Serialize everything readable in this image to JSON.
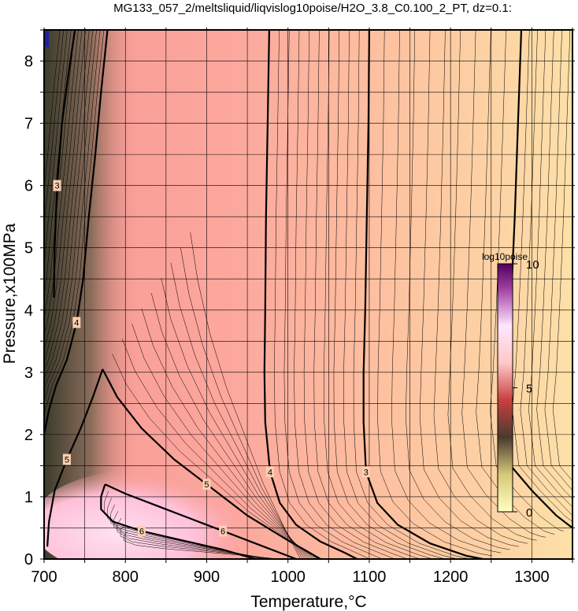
{
  "chart_data": {
    "type": "contour",
    "title": "MG133_057_2/meltsliquid/liqvislog10poise/H2O_3.8_C0.100_2_PT, dz=0.1:",
    "xlabel": "Temperature,°C",
    "ylabel": "Pressure,x100MPa",
    "xlim": [
      700,
      1350
    ],
    "ylim": [
      0,
      8.5
    ],
    "x_ticks": [
      700,
      800,
      900,
      1000,
      1100,
      1200,
      1300
    ],
    "y_ticks": [
      0,
      1,
      2,
      3,
      4,
      5,
      6,
      7,
      8
    ],
    "grid": true,
    "contour_interval": 0.1,
    "labeled_contours": [
      {
        "level": "2",
        "points": [
          [
            1287,
            8.5
          ],
          [
            1283,
            7.0
          ],
          [
            1279,
            5.5
          ],
          [
            1274,
            4.0
          ],
          [
            1270,
            3.0
          ],
          [
            1266,
            2.4
          ],
          [
            1274,
            1.5
          ],
          [
            1300,
            1.1
          ],
          [
            1330,
            0.7
          ],
          [
            1350,
            0.5
          ]
        ]
      },
      {
        "level": "3",
        "points": [
          [
            1100,
            8.5
          ],
          [
            1099,
            7.0
          ],
          [
            1097,
            5.5
          ],
          [
            1095,
            4.0
          ],
          [
            1093,
            3.0
          ],
          [
            1093,
            2.2
          ],
          [
            1096,
            1.4
          ],
          [
            1110,
            0.9
          ],
          [
            1135,
            0.55
          ],
          [
            1175,
            0.25
          ],
          [
            1220,
            0.05
          ],
          [
            1240,
            0.0
          ]
        ]
      },
      {
        "level": "4",
        "points": [
          [
            977,
            8.5
          ],
          [
            975,
            7.0
          ],
          [
            973,
            5.5
          ],
          [
            972,
            4.0
          ],
          [
            971,
            3.0
          ],
          [
            972,
            2.2
          ],
          [
            978,
            1.4
          ],
          [
            990,
            0.9
          ],
          [
            1010,
            0.55
          ],
          [
            1040,
            0.28
          ],
          [
            1070,
            0.1
          ],
          [
            1085,
            0.0
          ]
        ]
      },
      {
        "level": "5",
        "points": [
          [
            772,
            3.05
          ],
          [
            760,
            2.6
          ],
          [
            745,
            2.1
          ],
          [
            728,
            1.6
          ],
          [
            713,
            1.1
          ],
          [
            706,
            0.6
          ],
          [
            704,
            0.2
          ]
        ]
      },
      {
        "level": "5",
        "points": [
          [
            772,
            3.05
          ],
          [
            790,
            2.6
          ],
          [
            820,
            2.1
          ],
          [
            860,
            1.6
          ],
          [
            900,
            1.2
          ],
          [
            950,
            0.7
          ],
          [
            1000,
            0.3
          ],
          [
            1040,
            0.0
          ]
        ]
      },
      {
        "level": "6",
        "points": [
          [
            775,
            1.2
          ],
          [
            770,
            1.0
          ],
          [
            770,
            0.8
          ],
          [
            785,
            0.6
          ],
          [
            820,
            0.45
          ],
          [
            870,
            0.3
          ],
          [
            920,
            0.15
          ],
          [
            960,
            0.0
          ]
        ]
      },
      {
        "level": "6",
        "points": [
          [
            775,
            1.2
          ],
          [
            800,
            1.05
          ],
          [
            840,
            0.85
          ],
          [
            880,
            0.65
          ],
          [
            920,
            0.45
          ],
          [
            960,
            0.25
          ],
          [
            1000,
            0.05
          ],
          [
            1010,
            0.0
          ]
        ]
      },
      {
        "level": "3",
        "points": [
          [
            738,
            8.5
          ],
          [
            730,
            7.8
          ],
          [
            722,
            7.0
          ],
          [
            716,
            6.0
          ],
          [
            713,
            5.0
          ],
          [
            712,
            4.2
          ]
        ]
      },
      {
        "level": "4",
        "points": [
          [
            778,
            8.5
          ],
          [
            770,
            7.5
          ],
          [
            763,
            6.5
          ],
          [
            755,
            5.5
          ],
          [
            748,
            4.5
          ],
          [
            740,
            3.8
          ],
          [
            728,
            3.2
          ],
          [
            715,
            2.8
          ],
          [
            706,
            2.4
          ],
          [
            700,
            2.0
          ]
        ]
      }
    ],
    "colorbar": {
      "label": "log10poise",
      "ticks": [
        "0",
        "5",
        "10"
      ],
      "range": [
        0,
        10
      ],
      "colors": [
        "#ffffc0",
        "#d8c87a",
        "#4a3a30",
        "#c84040",
        "#ffc8c8",
        "#ffe6ff",
        "#a040a0",
        "#500060"
      ]
    }
  }
}
